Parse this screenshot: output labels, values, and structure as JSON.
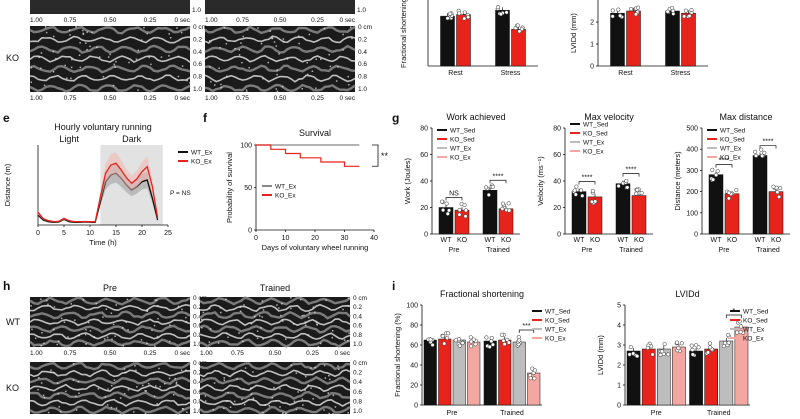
{
  "panel_letters": {
    "e": "e",
    "f": "f",
    "g": "g",
    "h": "h",
    "i": "i"
  },
  "echo_top": {
    "ko_label": "KO",
    "x_ticks": [
      "1.00",
      "0.75",
      "0.50",
      "0.25",
      "0 sec"
    ],
    "y_ticks": [
      "0 cm",
      "0.2",
      "0.4",
      "0.6",
      "0.8",
      "1.0"
    ],
    "y_ticks_top_partial": [
      "1.0"
    ]
  },
  "echo_h": {
    "col_titles": [
      "Pre",
      "Trained"
    ],
    "row_labels": [
      "WT",
      "KO"
    ],
    "x_ticks": [
      "1.00",
      "0.75",
      "0.50",
      "0.25",
      "0 sec"
    ],
    "y_ticks": [
      "0 cm",
      "0.2",
      "0.4",
      "0.6",
      "0.8",
      "1.0"
    ]
  },
  "legend_g": [
    "WT_Sed",
    "KO_Sed",
    "WT_Ex",
    "KO_Ex"
  ],
  "legend_i": [
    "WT_Sed",
    "KO_Sed",
    "WT_Ex",
    "KO_Ex"
  ],
  "colors": {
    "black": "#111111",
    "red": "#e8231b",
    "grey": "#bdbdbd",
    "pink": "#f4a7a0",
    "shade": "#e2e2e2"
  },
  "chart_data": [
    {
      "id": "d_partial_fs",
      "type": "bar",
      "ylabel": "Fractional shortening",
      "categories": [
        "Rest",
        "Stress"
      ],
      "series": [
        {
          "name": "WT",
          "values": [
            64,
            68
          ]
        },
        {
          "name": "KO",
          "values": [
            65,
            55
          ]
        }
      ],
      "ylim": [
        30,
        75
      ]
    },
    {
      "id": "d_partial_lvidd",
      "type": "bar",
      "ylabel": "LVIDd (mm)",
      "y_ticks": [
        "2",
        "1",
        "0"
      ],
      "categories": [
        "Rest",
        "Stress"
      ],
      "series": [
        {
          "name": "WT",
          "values": [
            2.4,
            2.5
          ]
        },
        {
          "name": "KO",
          "values": [
            2.5,
            2.4
          ]
        }
      ],
      "ylim": [
        0,
        3
      ]
    },
    {
      "id": "e",
      "type": "line",
      "title": "Hourly voluntary running",
      "xlabel": "Time (h)",
      "ylabel": "Distance (m)",
      "x_ticks": [
        "0",
        "5",
        "10",
        "15",
        "20",
        "25"
      ],
      "xlim": [
        0,
        25
      ],
      "ylim": [
        0,
        2400
      ],
      "light_label": "Light",
      "dark_label": "Dark",
      "dark_period": [
        12,
        24
      ],
      "annotation": "P = NS",
      "series": [
        {
          "name": "WT_Ex",
          "x": [
            0,
            1,
            2,
            3,
            4,
            5,
            6,
            7,
            8,
            9,
            10,
            11,
            12,
            13,
            14,
            15,
            16,
            17,
            18,
            19,
            20,
            21,
            22,
            23
          ],
          "values": [
            300,
            150,
            100,
            80,
            90,
            170,
            100,
            80,
            80,
            90,
            85,
            80,
            700,
            1300,
            1500,
            1550,
            1400,
            1200,
            1050,
            1150,
            1300,
            1350,
            800,
            150
          ]
        },
        {
          "name": "KO_Ex",
          "x": [
            0,
            1,
            2,
            3,
            4,
            5,
            6,
            7,
            8,
            9,
            10,
            11,
            12,
            13,
            14,
            15,
            16,
            17,
            18,
            19,
            20,
            21,
            22,
            23
          ],
          "values": [
            380,
            190,
            130,
            100,
            110,
            200,
            130,
            100,
            100,
            105,
            100,
            95,
            850,
            1550,
            1800,
            1850,
            1650,
            1420,
            1250,
            1380,
            1600,
            1750,
            1150,
            220
          ]
        }
      ]
    },
    {
      "id": "f",
      "type": "line",
      "title": "Survival",
      "xlabel": "Days of voluntary wheel running",
      "ylabel": "Probability of survival",
      "x_ticks": [
        "0",
        "10",
        "20",
        "30",
        "40"
      ],
      "y_ticks": [
        "0",
        "50",
        "100"
      ],
      "xlim": [
        0,
        40
      ],
      "ylim": [
        0,
        100
      ],
      "annotation": "**",
      "series": [
        {
          "name": "WT_Ex",
          "x": [
            0,
            35
          ],
          "values": [
            100,
            100
          ]
        },
        {
          "name": "KO_Ex",
          "x": [
            0,
            5,
            5,
            10,
            10,
            15,
            15,
            22,
            22,
            30,
            30,
            35
          ],
          "values": [
            100,
            100,
            95,
            95,
            90,
            90,
            85,
            85,
            80,
            80,
            75,
            75
          ]
        }
      ]
    },
    {
      "id": "g1",
      "type": "bar",
      "title": "Work achieved",
      "ylabel": "Work (Joules)",
      "categories": [
        "Pre",
        "Trained"
      ],
      "y_ticks": [
        "0",
        "20",
        "40",
        "60",
        "80"
      ],
      "ylim": [
        0,
        80
      ],
      "bar_labels": [
        "WT",
        "KO",
        "WT",
        "KO"
      ],
      "group_labels": [
        "Pre",
        "Trained"
      ],
      "series": [
        {
          "name": "WT",
          "values": [
            20,
            33
          ]
        },
        {
          "name": "KO",
          "values": [
            18,
            19
          ]
        }
      ],
      "significance": [
        "NS",
        "****"
      ]
    },
    {
      "id": "g2",
      "type": "bar",
      "title": "Max velocity",
      "ylabel": "Velocity (ms⁻¹)",
      "categories": [
        "Pre",
        "Trained"
      ],
      "y_ticks": [
        "0",
        "20",
        "40",
        "60",
        "80"
      ],
      "ylim": [
        0,
        80
      ],
      "bar_labels": [
        "WT",
        "KO",
        "WT",
        "KO"
      ],
      "group_labels": [
        "Pre",
        "Trained"
      ],
      "series": [
        {
          "name": "WT",
          "values": [
            32,
            38
          ]
        },
        {
          "name": "KO",
          "values": [
            28,
            29
          ]
        }
      ],
      "significance": [
        "****",
        "****"
      ]
    },
    {
      "id": "g3",
      "type": "bar",
      "title": "Max distance",
      "ylabel": "Distance (meters)",
      "categories": [
        "Pre",
        "Trained"
      ],
      "y_ticks": [
        "0",
        "100",
        "200",
        "300",
        "400",
        "500"
      ],
      "ylim": [
        0,
        500
      ],
      "bar_labels": [
        "WT",
        "KO",
        "WT",
        "KO"
      ],
      "group_labels": [
        "Pre",
        "Trained"
      ],
      "series": [
        {
          "name": "WT",
          "values": [
            280,
            370
          ]
        },
        {
          "name": "KO",
          "values": [
            190,
            200
          ]
        }
      ],
      "significance": [
        "****",
        "****"
      ]
    },
    {
      "id": "i1",
      "type": "bar",
      "title": "Fractional shortening",
      "ylabel": "Fractional shortening (%)",
      "categories": [
        "Pre",
        "Trained"
      ],
      "y_ticks": [
        "0",
        "20",
        "40",
        "60",
        "80",
        "100"
      ],
      "ylim": [
        0,
        100
      ],
      "group_labels": [
        "Pre",
        "Trained"
      ],
      "series": [
        {
          "name": "WT_Sed",
          "values": [
            65,
            64
          ]
        },
        {
          "name": "KO_Sed",
          "values": [
            66,
            65
          ]
        },
        {
          "name": "WT_Ex",
          "values": [
            65,
            63
          ]
        },
        {
          "name": "KO_Ex",
          "values": [
            63,
            32
          ]
        }
      ],
      "significance": [
        "***"
      ]
    },
    {
      "id": "i2",
      "type": "bar",
      "title": "LVIDd",
      "ylabel": "LVIDd (mm)",
      "categories": [
        "Pre",
        "Trained"
      ],
      "y_ticks": [
        "0",
        "1",
        "2",
        "3",
        "4",
        "5"
      ],
      "ylim": [
        0,
        5
      ],
      "group_labels": [
        "Pre",
        "Trained"
      ],
      "series": [
        {
          "name": "WT_Sed",
          "values": [
            2.7,
            2.7
          ]
        },
        {
          "name": "KO_Sed",
          "values": [
            2.8,
            2.8
          ]
        },
        {
          "name": "WT_Ex",
          "values": [
            2.8,
            3.2
          ]
        },
        {
          "name": "KO_Ex",
          "values": [
            2.9,
            3.9
          ]
        }
      ],
      "significance": [
        "*"
      ]
    }
  ]
}
